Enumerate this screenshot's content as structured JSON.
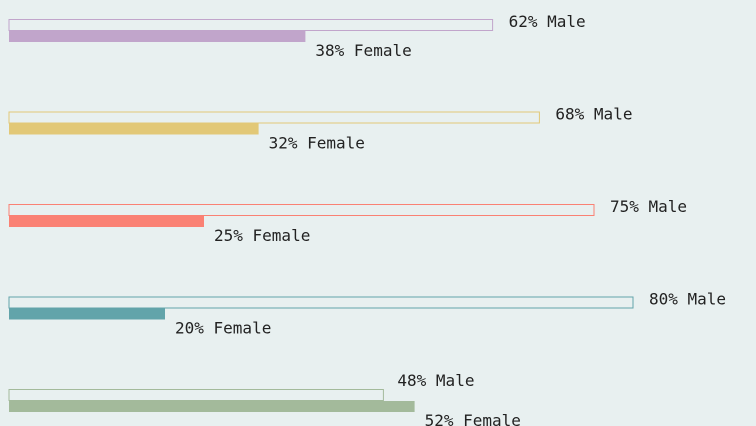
{
  "chart_data": {
    "type": "bar",
    "orientation": "horizontal",
    "xlim": [
      0,
      100
    ],
    "groups": [
      {
        "color": "#c1a5cb",
        "values": [
          62,
          38
        ],
        "value_labels": [
          "62% Male",
          "38% Female"
        ]
      },
      {
        "color": "#e2c877",
        "values": [
          68,
          32
        ],
        "value_labels": [
          "68% Male",
          "32% Female"
        ]
      },
      {
        "color": "#fa8174",
        "values": [
          75,
          25
        ],
        "value_labels": [
          "75% Male",
          "25% Female"
        ]
      },
      {
        "color": "#62a4aa",
        "values": [
          80,
          20
        ],
        "value_labels": [
          "80% Male",
          "20% Female"
        ]
      },
      {
        "color": "#a3ba9b",
        "values": [
          48,
          52
        ],
        "value_labels": [
          "48% Male",
          "52% Female"
        ]
      }
    ]
  }
}
